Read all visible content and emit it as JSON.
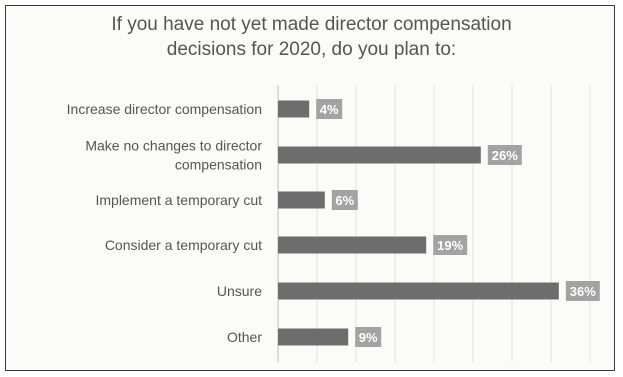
{
  "chart_data": {
    "type": "bar",
    "orientation": "horizontal",
    "title_lines": [
      "If you have not yet made director compensation",
      "decisions for 2020, do you plan to:"
    ],
    "categories": [
      [
        "Increase director compensation"
      ],
      [
        "Make no changes to director",
        "compensation"
      ],
      [
        "Implement a temporary cut"
      ],
      [
        "Consider a temporary cut"
      ],
      [
        "Unsure"
      ],
      [
        "Other"
      ]
    ],
    "values": [
      4,
      26,
      6,
      19,
      36,
      9
    ],
    "value_labels": [
      "4%",
      "26%",
      "6%",
      "19%",
      "36%",
      "9%"
    ],
    "xlim": [
      0,
      40
    ],
    "grid": true,
    "colors": {
      "bar": "#6d6d6d",
      "label_box": "#a3a3a3",
      "grid": "#e2e2e2",
      "text": "#555555"
    }
  }
}
